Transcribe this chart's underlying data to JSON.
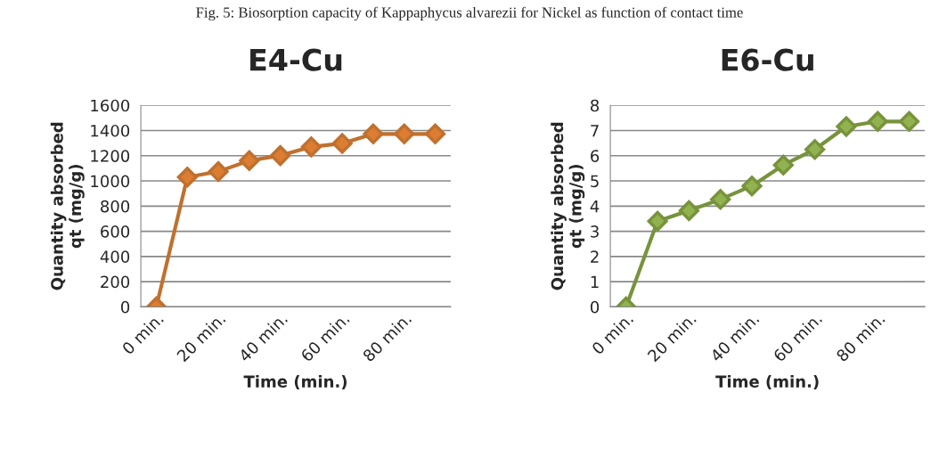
{
  "chart_data": [
    {
      "type": "line",
      "title": "E4-Cu",
      "xlabel": "Time (min.)",
      "ylabel": "Quantity absorbed\nqt (mg/g)",
      "annotations": [
        "Fig. 5: Biosorption capacity of Kappaphycus alvarezii for Nickel as function of contact time"
      ],
      "categories": [
        "0 min.",
        null,
        "20 min.",
        null,
        "40 min.",
        null,
        "60 min.",
        null,
        "80 min.",
        null
      ],
      "series": [
        {
          "color": "#c0702f",
          "values": [
            0,
            1030,
            1074,
            1161,
            1201,
            1270,
            1298,
            1373,
            1373,
            1373
          ]
        }
      ],
      "ylim": [
        0,
        1600
      ],
      "yticks": [
        0,
        200,
        400,
        600,
        800,
        1000,
        1200,
        1400,
        1600
      ],
      "grid": "y",
      "marker": "diamond",
      "line_style": "solid"
    },
    {
      "type": "line",
      "title": "E6-Cu",
      "xlabel": "Time (min.)",
      "ylabel": "Quantity absorbed\nqt (mg/g)",
      "categories": [
        "0 min.",
        null,
        "20 min.",
        null,
        "40 min.",
        null,
        "60 min.",
        null,
        "80 min.",
        null
      ],
      "series": [
        {
          "color": "#77933c",
          "values": [
            0,
            3.4,
            3.82,
            4.27,
            4.8,
            5.63,
            6.25,
            7.16,
            7.36,
            7.36
          ]
        }
      ],
      "ylim": [
        0,
        8
      ],
      "yticks": [
        0,
        1,
        2,
        3,
        4,
        5,
        6,
        7,
        8
      ],
      "grid": "y",
      "marker": "diamond",
      "line_style": "solid"
    }
  ]
}
